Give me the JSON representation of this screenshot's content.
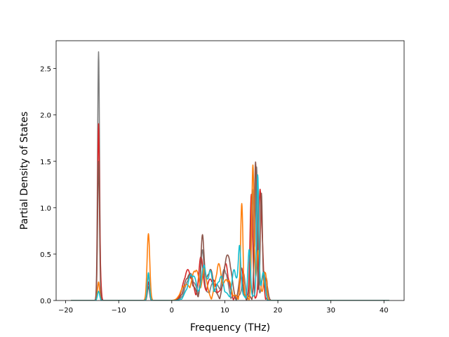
{
  "chart_data": {
    "type": "line",
    "title": "",
    "xlabel": "Frequency (THz)",
    "ylabel": "Partial Density of States",
    "xlim": [
      -21.8,
      43.8
    ],
    "ylim": [
      0,
      2.8
    ],
    "xticks": [
      -20,
      -10,
      0,
      10,
      20,
      30,
      40
    ],
    "yticks": [
      0.0,
      0.5,
      1.0,
      1.5,
      2.0,
      2.5
    ],
    "xtick_labels": [
      "−20",
      "−10",
      "0",
      "10",
      "20",
      "30",
      "40"
    ],
    "ytick_labels": [
      "0.0",
      "0.5",
      "1.0",
      "1.5",
      "2.0",
      "2.5"
    ],
    "grid": false,
    "legend": "none",
    "x_range_of_data": [
      -19.0,
      41.0
    ],
    "series": [
      {
        "color": "#7f7f7f",
        "peaks": [
          [
            -13.8,
            2.68,
            0.18
          ],
          [
            -4.4,
            0.28,
            0.2
          ],
          [
            3.5,
            0.25,
            0.8
          ],
          [
            5.8,
            0.5,
            0.3
          ],
          [
            8.0,
            0.15,
            0.8
          ],
          [
            10.0,
            0.3,
            0.5
          ],
          [
            13.5,
            0.25,
            0.3
          ],
          [
            15.2,
            1.2,
            0.25
          ],
          [
            16.0,
            1.4,
            0.2
          ],
          [
            17.3,
            0.3,
            0.3
          ]
        ]
      },
      {
        "color": "#d62728",
        "peaks": [
          [
            -13.8,
            1.9,
            0.18
          ],
          [
            -13.4,
            0.15,
            0.15
          ],
          [
            -4.4,
            0.2,
            0.2
          ],
          [
            3.0,
            0.3,
            0.8
          ],
          [
            5.5,
            0.45,
            0.35
          ],
          [
            7.5,
            0.2,
            0.8
          ],
          [
            10.2,
            0.35,
            0.5
          ],
          [
            13.2,
            0.3,
            0.3
          ],
          [
            15.0,
            1.1,
            0.25
          ],
          [
            16.6,
            1.0,
            0.2
          ],
          [
            17.0,
            0.6,
            0.25
          ]
        ]
      },
      {
        "color": "#8c564b",
        "peaks": [
          [
            -13.8,
            1.5,
            0.18
          ],
          [
            -4.4,
            0.15,
            0.2
          ],
          [
            3.2,
            0.25,
            0.8
          ],
          [
            5.8,
            0.66,
            0.3
          ],
          [
            7.2,
            0.3,
            0.6
          ],
          [
            10.2,
            0.38,
            0.45
          ],
          [
            11.0,
            0.3,
            0.4
          ],
          [
            13.0,
            0.25,
            0.3
          ],
          [
            15.8,
            1.45,
            0.22
          ],
          [
            16.9,
            1.12,
            0.2
          ],
          [
            17.8,
            0.2,
            0.3
          ]
        ]
      },
      {
        "color": "#ff7f0e",
        "peaks": [
          [
            -13.8,
            0.2,
            0.18
          ],
          [
            -4.4,
            0.72,
            0.25
          ],
          [
            2.5,
            0.15,
            0.8
          ],
          [
            4.5,
            0.3,
            0.6
          ],
          [
            6.2,
            0.3,
            0.4
          ],
          [
            8.8,
            0.35,
            0.5
          ],
          [
            10.5,
            0.2,
            0.6
          ],
          [
            13.2,
            1.0,
            0.22
          ],
          [
            15.3,
            1.42,
            0.22
          ],
          [
            16.3,
            0.5,
            0.3
          ],
          [
            17.6,
            0.3,
            0.25
          ]
        ]
      },
      {
        "color": "#17becf",
        "peaks": [
          [
            -13.8,
            0.1,
            0.2
          ],
          [
            -4.4,
            0.3,
            0.2
          ],
          [
            3.8,
            0.25,
            0.8
          ],
          [
            6.0,
            0.35,
            0.35
          ],
          [
            7.2,
            0.28,
            0.45
          ],
          [
            9.2,
            0.22,
            0.6
          ],
          [
            11.8,
            0.3,
            0.4
          ],
          [
            12.8,
            0.55,
            0.25
          ],
          [
            14.6,
            0.5,
            0.25
          ],
          [
            16.2,
            1.33,
            0.2
          ],
          [
            17.2,
            0.28,
            0.3
          ]
        ]
      }
    ]
  }
}
